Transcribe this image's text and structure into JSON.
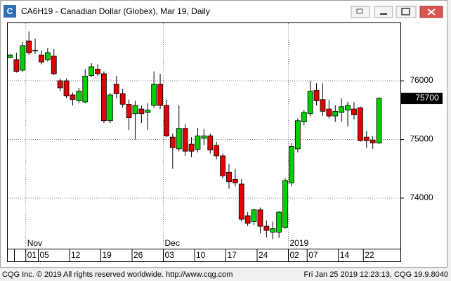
{
  "window": {
    "app_icon": "C",
    "copyright": "CQG Inc. © 2019 All rights reserved worldwide. http://www.cqg.com",
    "timestamp": "Fri Jan 25 2019 12:23:13, CQG 19.9.8040"
  },
  "chart_data": {
    "type": "candlestick",
    "title": "CA6H19 - Canadian Dollar (Globex), Mar 19, Daily",
    "categories": [
      null,
      null,
      null,
      "01",
      null,
      "05",
      null,
      null,
      null,
      null,
      "12",
      null,
      null,
      null,
      null,
      "19",
      null,
      null,
      null,
      null,
      "26",
      null,
      null,
      null,
      null,
      "03",
      null,
      null,
      null,
      null,
      "10",
      null,
      null,
      null,
      null,
      "17",
      null,
      null,
      null,
      null,
      "24",
      null,
      null,
      null,
      null,
      "02",
      null,
      null,
      "07",
      null,
      null,
      null,
      null,
      "14",
      null,
      null,
      null,
      "22",
      null,
      null
    ],
    "month_labels": [
      null,
      null,
      null,
      "Nov",
      null,
      null,
      null,
      null,
      null,
      null,
      null,
      null,
      null,
      null,
      null,
      null,
      null,
      null,
      null,
      null,
      null,
      null,
      null,
      null,
      null,
      "Dec",
      null,
      null,
      null,
      null,
      null,
      null,
      null,
      null,
      null,
      null,
      null,
      null,
      null,
      null,
      null,
      null,
      null,
      null,
      null,
      "2019",
      null,
      null,
      null,
      null,
      null,
      null,
      null,
      null,
      null,
      null,
      null,
      null,
      null,
      null
    ],
    "open": [
      76400,
      76360,
      76180,
      76680,
      76510,
      76440,
      76360,
      76420,
      76000,
      76000,
      75760,
      75660,
      75640,
      76090,
      76200,
      76120,
      75320,
      75940,
      75780,
      75600,
      75440,
      75520,
      75460,
      75580,
      75940,
      75580,
      75040,
      74840,
      75190,
      74920,
      74830,
      75020,
      75060,
      74900,
      74720,
      74440,
      74320,
      74240,
      73700,
      73600,
      73800,
      73520,
      73420,
      73420,
      73500,
      74260,
      74840,
      75300,
      75440,
      75840,
      75680,
      75520,
      75400,
      75460,
      75500,
      75520,
      75540,
      75040,
      74990,
      74940
    ],
    "high": [
      76460,
      76480,
      76660,
      76840,
      76720,
      76520,
      76560,
      76540,
      76040,
      76040,
      75800,
      75880,
      76200,
      76300,
      76280,
      76160,
      75790,
      76080,
      75860,
      75680,
      75660,
      75580,
      75620,
      76160,
      76120,
      75680,
      75100,
      75580,
      75260,
      75040,
      75200,
      75180,
      75100,
      74960,
      74760,
      74580,
      74500,
      74320,
      73760,
      73820,
      73840,
      73620,
      73600,
      73780,
      74340,
      74940,
      75360,
      75500,
      76000,
      75960,
      75960,
      75680,
      75580,
      75700,
      75640,
      75640,
      75560,
      75140,
      75060,
      75720
    ],
    "low": [
      76380,
      76140,
      76150,
      76440,
      76460,
      76280,
      76330,
      76100,
      75820,
      75700,
      75580,
      75620,
      75620,
      76060,
      76080,
      75280,
      75280,
      75700,
      75540,
      75160,
      75000,
      75280,
      75160,
      75540,
      75520,
      75040,
      74500,
      74800,
      74720,
      74700,
      74780,
      74900,
      74760,
      74660,
      74340,
      74160,
      74200,
      73600,
      73520,
      73540,
      73400,
      73330,
      73300,
      73320,
      73480,
      74200,
      74780,
      75240,
      75400,
      75580,
      75400,
      75360,
      75300,
      75300,
      75220,
      75340,
      74960,
      74860,
      74840,
      74920
    ],
    "close": [
      76440,
      76160,
      76600,
      76480,
      76520,
      76320,
      76480,
      76120,
      75880,
      75740,
      75680,
      75820,
      76080,
      76240,
      76120,
      75320,
      75760,
      75780,
      75600,
      75370,
      75580,
      75440,
      75500,
      75940,
      75580,
      75060,
      74860,
      75190,
      74800,
      74800,
      75060,
      75060,
      74820,
      74720,
      74380,
      74280,
      74260,
      73640,
      73570,
      73800,
      73520,
      73450,
      73480,
      73760,
      74300,
      74880,
      75320,
      75460,
      75820,
      75660,
      75480,
      75400,
      75480,
      75560,
      75580,
      75420,
      74980,
      74980,
      74940,
      75700
    ],
    "up_color": "#00d000",
    "down_color": "#e00000",
    "ylim": [
      73150,
      76982
    ],
    "yticks": [
      74000,
      75000,
      76000
    ],
    "grid": true,
    "last_price": 75700
  }
}
